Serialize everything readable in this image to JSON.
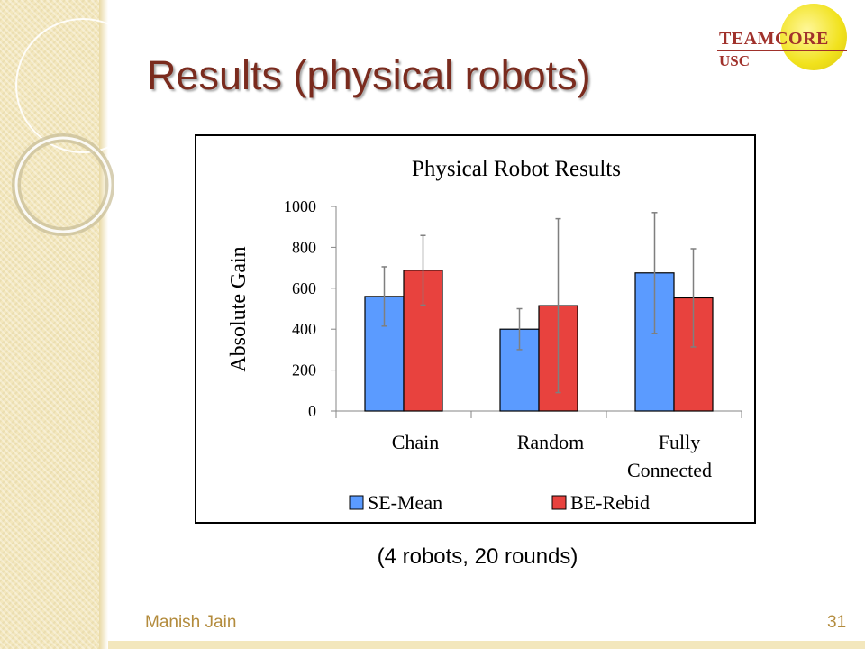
{
  "slide": {
    "title": "Results (physical robots)",
    "caption": "(4 robots, 20 rounds)",
    "footer_author": "Manish Jain",
    "page_number": "31"
  },
  "logo": {
    "word": "TEAMCORE",
    "sub": "USC"
  },
  "colors": {
    "title": "#7a2b1e",
    "series_se": "#5b9bff",
    "series_be": "#e8423e",
    "error_bar": "#7f7f7f",
    "footer": "#b38b3c"
  },
  "chart_data": {
    "type": "bar",
    "title": "Physical Robot Results",
    "ylabel": "Absolute Gain",
    "xlabel": "",
    "ylim": [
      0,
      1000
    ],
    "yticks": [
      0,
      200,
      400,
      600,
      800,
      1000
    ],
    "categories": [
      "Chain",
      "Random",
      "Fully Connected"
    ],
    "category_lines": [
      [
        "Chain"
      ],
      [
        "Random"
      ],
      [
        "Fully",
        "Connected"
      ]
    ],
    "series": [
      {
        "name": "SE-Mean",
        "color": "#5b9bff",
        "values": [
          560,
          400,
          675
        ],
        "errors": [
          145,
          100,
          295
        ]
      },
      {
        "name": "BE-Rebid",
        "color": "#e8423e",
        "values": [
          688,
          515,
          553
        ],
        "errors": [
          170,
          425,
          240
        ]
      }
    ],
    "grid": false,
    "legend": "bottom"
  }
}
